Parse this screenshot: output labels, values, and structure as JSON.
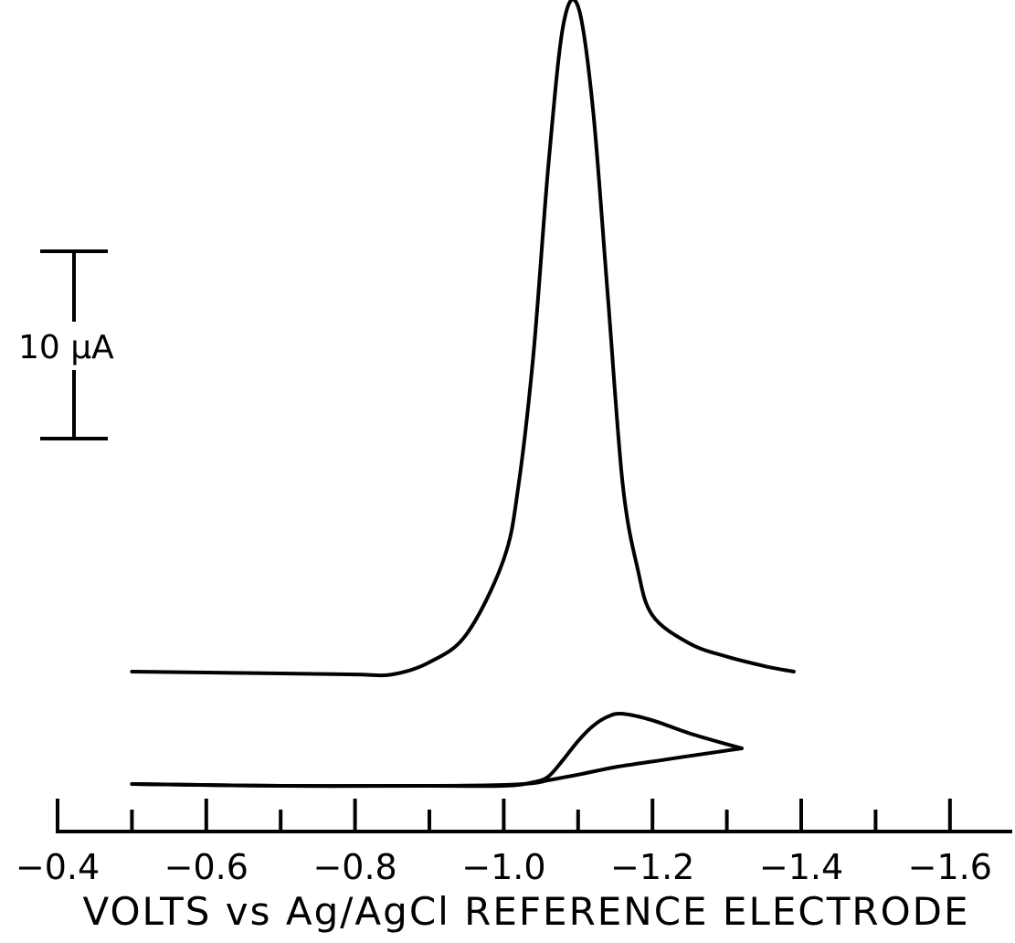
{
  "chart_data": {
    "type": "line",
    "title": "",
    "xlabel": "VOLTS vs Ag/AgCl REFERENCE ELECTRODE",
    "ylabel": "",
    "xlim": [
      -0.4,
      -1.7
    ],
    "x_ticks_major": [
      -0.4,
      -0.6,
      -0.8,
      -1.0,
      -1.2,
      -1.4,
      -1.6
    ],
    "x_tick_labels": [
      "−0.4",
      "−0.6",
      "−0.8",
      "−1.0",
      "−1.2",
      "−1.4",
      "−1.6"
    ],
    "x_ticks_minor": [
      -0.5,
      -0.7,
      -0.9,
      -1.1,
      -1.3,
      -1.5
    ],
    "y_units": "µA",
    "scale_bar": {
      "label": "10 µA",
      "value": 10
    },
    "grid": false,
    "legend": "none",
    "series": [
      {
        "x": [
          -0.5,
          -0.6,
          -0.7,
          -0.8,
          -0.85,
          -0.9,
          -0.95,
          -1.0,
          -1.02,
          -1.04,
          -1.06,
          -1.08,
          -1.1,
          -1.12,
          -1.14,
          -1.16,
          -1.18,
          -1.2,
          -1.25,
          -1.3,
          -1.35,
          -1.39
        ],
        "y": [
          0.0,
          -0.05,
          -0.1,
          -0.15,
          -0.15,
          0.5,
          2.0,
          6.0,
          10.0,
          17.0,
          27.0,
          34.5,
          35.5,
          30.0,
          20.0,
          10.0,
          5.5,
          3.0,
          1.5,
          0.8,
          0.3,
          0.0
        ]
      },
      {
        "x": [
          -0.5,
          -0.7,
          -0.9,
          -1.0,
          -1.04,
          -1.06,
          -1.08,
          -1.1,
          -1.12,
          -1.14,
          -1.16,
          -1.2,
          -1.25,
          -1.32
        ],
        "y": [
          -6.0,
          -6.1,
          -6.1,
          -6.1,
          -5.9,
          -5.6,
          -4.7,
          -3.7,
          -2.9,
          -2.4,
          -2.25,
          -2.6,
          -3.3,
          -4.1
        ]
      },
      {
        "x": [
          -1.32,
          -1.25,
          -1.2,
          -1.15,
          -1.1,
          -1.06,
          -1.04,
          -1.0,
          -0.9,
          -0.7,
          -0.5
        ],
        "y": [
          -4.1,
          -4.5,
          -4.8,
          -5.1,
          -5.5,
          -5.8,
          -5.95,
          -6.05,
          -6.1,
          -6.1,
          -6.0
        ]
      }
    ]
  }
}
